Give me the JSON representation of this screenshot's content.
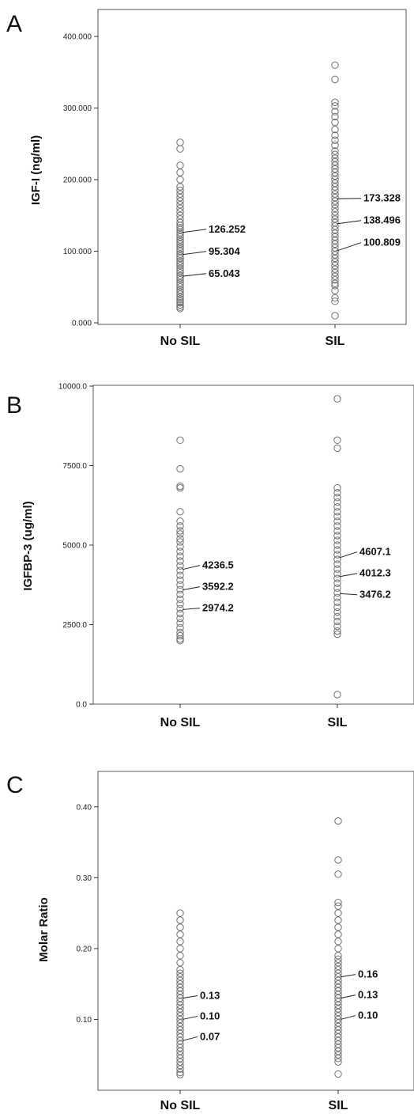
{
  "chart_data": [
    {
      "type": "scatter",
      "panel": "A",
      "ylabel": "IGF-I (ng/ml)",
      "xlabel": "",
      "ylim": [
        0,
        420
      ],
      "yticks": [
        0,
        100,
        200,
        300,
        400
      ],
      "ytick_labels": [
        "0.000",
        "100.000",
        "200.000",
        "300.000",
        "400.000"
      ],
      "categories": [
        "No SIL",
        "SIL"
      ],
      "series": [
        {
          "category": "No SIL",
          "values": [
            20,
            22,
            25,
            28,
            30,
            33,
            36,
            40,
            43,
            46,
            50,
            53,
            56,
            60,
            63,
            66,
            70,
            73,
            76,
            80,
            83,
            86,
            90,
            93,
            96,
            100,
            103,
            106,
            110,
            113,
            116,
            120,
            123,
            126,
            130,
            133,
            136,
            140,
            145,
            150,
            155,
            160,
            165,
            170,
            175,
            180,
            185,
            190,
            200,
            210,
            220,
            243,
            252
          ],
          "quartile_labels": [
            "126.252",
            "95.304",
            "65.043"
          ],
          "quartile_values": [
            126.252,
            95.304,
            65.043
          ]
        },
        {
          "category": "SIL",
          "values": [
            10,
            30,
            35,
            45,
            52,
            55,
            60,
            65,
            70,
            75,
            80,
            85,
            90,
            95,
            100,
            105,
            110,
            115,
            120,
            125,
            130,
            135,
            140,
            145,
            150,
            155,
            160,
            165,
            170,
            175,
            180,
            185,
            190,
            195,
            200,
            205,
            210,
            215,
            220,
            225,
            230,
            235,
            240,
            248,
            255,
            262,
            270,
            280,
            288,
            295,
            303,
            308,
            340,
            360
          ],
          "quartile_labels": [
            "173.328",
            "138.496",
            "100.809"
          ],
          "quartile_values": [
            173.328,
            138.496,
            100.809
          ]
        }
      ],
      "grid": false
    },
    {
      "type": "scatter",
      "panel": "B",
      "ylabel": "IGFBP-3 (ug/ml)",
      "xlabel": "",
      "ylim": [
        0,
        10000
      ],
      "yticks": [
        0,
        2500,
        5000,
        7500,
        10000
      ],
      "ytick_labels": [
        "0.0",
        "2500.0",
        "5000.0",
        "7500.0",
        "10000.0"
      ],
      "categories": [
        "No SIL",
        "SIL"
      ],
      "series": [
        {
          "category": "No SIL",
          "values": [
            2000,
            2050,
            2150,
            2250,
            2400,
            2550,
            2700,
            2850,
            3000,
            3150,
            3300,
            3450,
            3600,
            3750,
            3900,
            4050,
            4200,
            4350,
            4500,
            4650,
            4800,
            4950,
            5100,
            5200,
            5350,
            5450,
            5600,
            5750,
            6050,
            6800,
            6850,
            7400,
            8300
          ],
          "quartile_labels": [
            "4236.5",
            "3592.2",
            "2974.2"
          ],
          "quartile_values": [
            4236.5,
            3592.2,
            2974.2
          ]
        },
        {
          "category": "SIL",
          "values": [
            300,
            2200,
            2300,
            2450,
            2600,
            2750,
            2900,
            3050,
            3200,
            3350,
            3500,
            3650,
            3800,
            3950,
            4100,
            4250,
            4400,
            4550,
            4700,
            4850,
            5000,
            5150,
            5300,
            5450,
            5600,
            5750,
            5900,
            6050,
            6200,
            6350,
            6500,
            6650,
            6800,
            8050,
            8300,
            9600
          ],
          "quartile_labels": [
            "4607.1",
            "4012.3",
            "3476.2"
          ],
          "quartile_values": [
            4607.1,
            4012.3,
            3476.2
          ]
        }
      ],
      "grid": false
    },
    {
      "type": "scatter",
      "panel": "C",
      "ylabel": "Molar Ratio",
      "xlabel": "",
      "ylim": [
        0,
        0.45
      ],
      "yticks": [
        0.1,
        0.2,
        0.3,
        0.4
      ],
      "ytick_labels": [
        "0.10",
        "0.20",
        "0.30",
        "0.40"
      ],
      "categories": [
        "No SIL",
        "SIL"
      ],
      "series": [
        {
          "category": "No SIL",
          "values": [
            0.022,
            0.025,
            0.03,
            0.035,
            0.04,
            0.045,
            0.05,
            0.055,
            0.06,
            0.065,
            0.07,
            0.075,
            0.08,
            0.085,
            0.09,
            0.095,
            0.1,
            0.105,
            0.11,
            0.115,
            0.12,
            0.125,
            0.13,
            0.135,
            0.14,
            0.145,
            0.15,
            0.155,
            0.16,
            0.165,
            0.17,
            0.18,
            0.19,
            0.2,
            0.21,
            0.22,
            0.23,
            0.24,
            0.25
          ],
          "quartile_labels": [
            "0.13",
            "0.10",
            "0.07"
          ],
          "quartile_values": [
            0.13,
            0.1,
            0.07
          ]
        },
        {
          "category": "SIL",
          "values": [
            0.023,
            0.04,
            0.045,
            0.05,
            0.055,
            0.06,
            0.065,
            0.07,
            0.075,
            0.08,
            0.085,
            0.09,
            0.095,
            0.1,
            0.105,
            0.11,
            0.115,
            0.12,
            0.125,
            0.13,
            0.135,
            0.14,
            0.145,
            0.15,
            0.155,
            0.16,
            0.165,
            0.17,
            0.175,
            0.18,
            0.185,
            0.19,
            0.2,
            0.21,
            0.22,
            0.23,
            0.24,
            0.25,
            0.26,
            0.265,
            0.305,
            0.325,
            0.38
          ],
          "quartile_labels": [
            "0.16",
            "0.13",
            "0.10"
          ],
          "quartile_values": [
            0.16,
            0.13,
            0.1
          ]
        }
      ],
      "grid": false
    }
  ],
  "panels": [
    {
      "letter": "A"
    },
    {
      "letter": "B"
    },
    {
      "letter": "C"
    }
  ]
}
